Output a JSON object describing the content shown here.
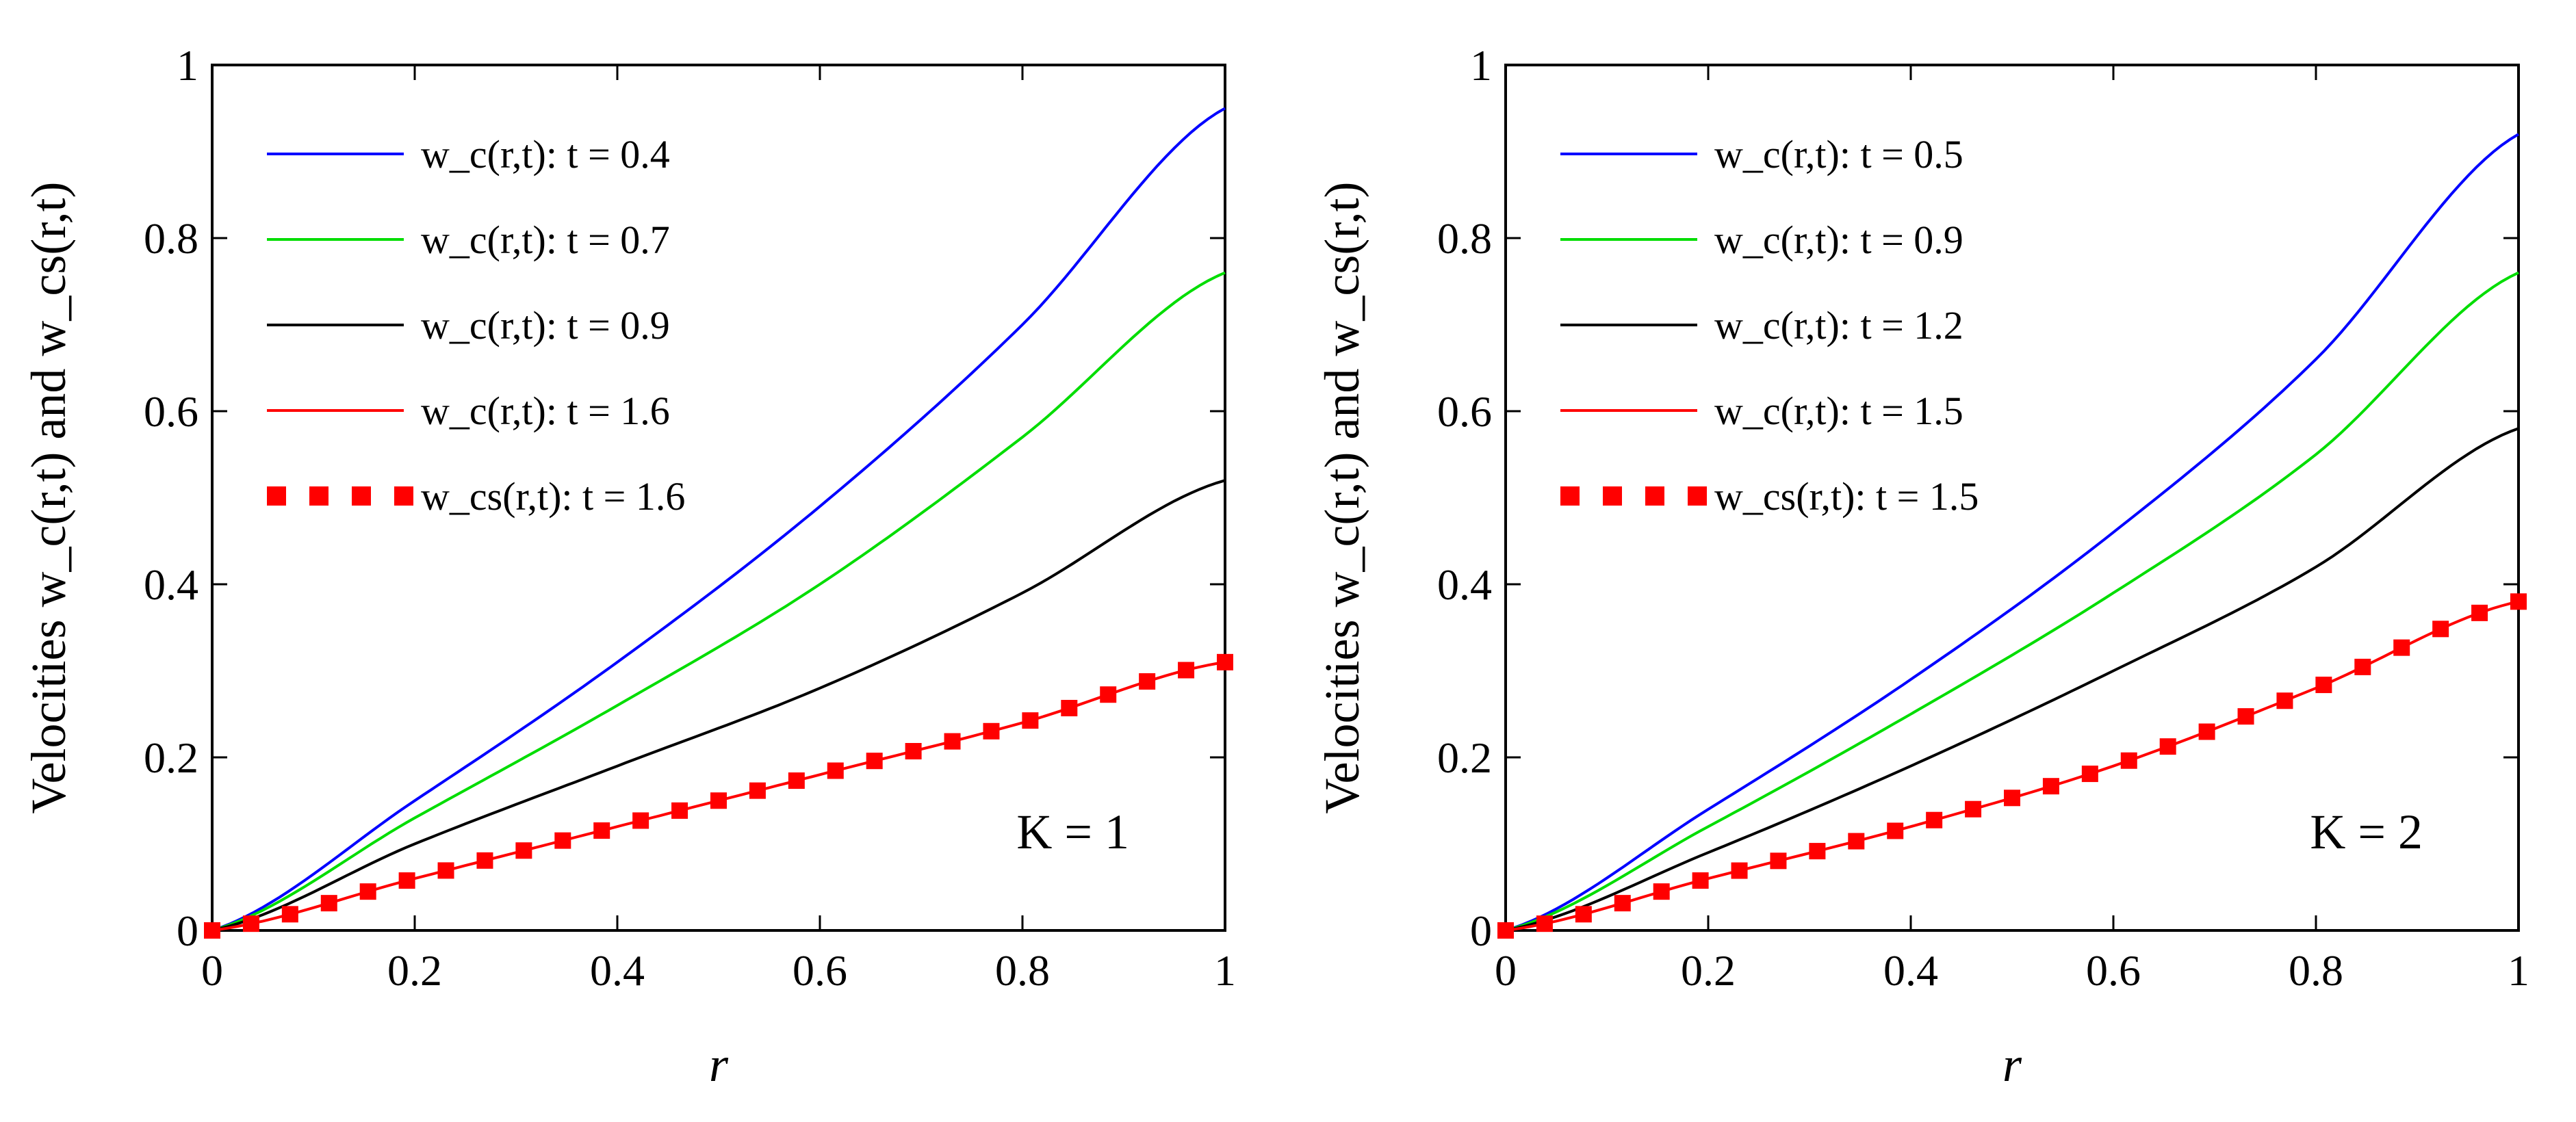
{
  "chart_data": [
    {
      "type": "line",
      "xlabel": "r",
      "ylabel": "Velocities w_c(r,t) and w_cs(r,t)",
      "xlim": [
        0,
        1
      ],
      "ylim": [
        0,
        1
      ],
      "xticks": [
        "0",
        "0.2",
        "0.4",
        "0.6",
        "0.8",
        "1"
      ],
      "yticks": [
        "0",
        "0.2",
        "0.4",
        "0.6",
        "0.8",
        "1"
      ],
      "legend_position": "top-left",
      "annotation": "K = 1",
      "series": [
        {
          "name": "w_c(r,t):  t = 0.4",
          "color": "#0000ff",
          "style": "solid",
          "x": [
            0,
            0.2,
            0.4,
            0.6,
            0.8,
            1.0
          ],
          "y": [
            0,
            0.15,
            0.31,
            0.49,
            0.7,
            0.95
          ]
        },
        {
          "name": "w_c(r,t):  t = 0.7",
          "color": "#00dd00",
          "style": "solid",
          "x": [
            0,
            0.2,
            0.4,
            0.6,
            0.8,
            1.0
          ],
          "y": [
            0,
            0.13,
            0.26,
            0.4,
            0.57,
            0.76
          ]
        },
        {
          "name": "w_c(r,t):  t = 0.9",
          "color": "#000000",
          "style": "solid",
          "x": [
            0,
            0.2,
            0.4,
            0.6,
            0.8,
            1.0
          ],
          "y": [
            0,
            0.1,
            0.19,
            0.28,
            0.39,
            0.52
          ]
        },
        {
          "name": "w_c(r,t):  t = 1.6",
          "color": "#ff0000",
          "style": "solid",
          "x": [
            0,
            0.2,
            0.4,
            0.6,
            0.8,
            1.0
          ],
          "y": [
            0,
            0.06,
            0.12,
            0.18,
            0.24,
            0.31
          ]
        },
        {
          "name": "w_cs(r,t): t = 1.6",
          "color": "#ff0000",
          "style": "markers",
          "x": [
            0,
            0.2,
            0.4,
            0.6,
            0.8,
            1.0
          ],
          "y": [
            0,
            0.06,
            0.12,
            0.18,
            0.24,
            0.31
          ]
        }
      ]
    },
    {
      "type": "line",
      "xlabel": "r",
      "ylabel": "Velocities w_c(r,t) and w_cs(r,t)",
      "xlim": [
        0,
        1
      ],
      "ylim": [
        0,
        1
      ],
      "xticks": [
        "0",
        "0.2",
        "0.4",
        "0.6",
        "0.8",
        "1"
      ],
      "yticks": [
        "0",
        "0.2",
        "0.4",
        "0.6",
        "0.8",
        "1"
      ],
      "legend_position": "top-left",
      "annotation": "K = 2",
      "series": [
        {
          "name": "w_c(r,t):  t = 0.5",
          "color": "#0000ff",
          "style": "solid",
          "x": [
            0,
            0.2,
            0.4,
            0.6,
            0.8,
            1.0
          ],
          "y": [
            0,
            0.14,
            0.29,
            0.46,
            0.66,
            0.92
          ]
        },
        {
          "name": "w_c(r,t):  t = 0.9",
          "color": "#00dd00",
          "style": "solid",
          "x": [
            0,
            0.2,
            0.4,
            0.6,
            0.8,
            1.0
          ],
          "y": [
            0,
            0.12,
            0.25,
            0.39,
            0.55,
            0.76
          ]
        },
        {
          "name": "w_c(r,t):  t = 1.2",
          "color": "#000000",
          "style": "solid",
          "x": [
            0,
            0.2,
            0.4,
            0.6,
            0.8,
            1.0
          ],
          "y": [
            0,
            0.09,
            0.19,
            0.3,
            0.42,
            0.58
          ]
        },
        {
          "name": "w_c(r,t):  t = 1.5",
          "color": "#ff0000",
          "style": "solid",
          "x": [
            0,
            0.2,
            0.4,
            0.6,
            0.8,
            1.0
          ],
          "y": [
            0,
            0.06,
            0.12,
            0.19,
            0.28,
            0.38
          ]
        },
        {
          "name": "w_cs(r,t): t = 1.5",
          "color": "#ff0000",
          "style": "markers",
          "x": [
            0,
            0.2,
            0.4,
            0.6,
            0.8,
            1.0
          ],
          "y": [
            0,
            0.06,
            0.12,
            0.19,
            0.28,
            0.38
          ]
        }
      ]
    }
  ]
}
